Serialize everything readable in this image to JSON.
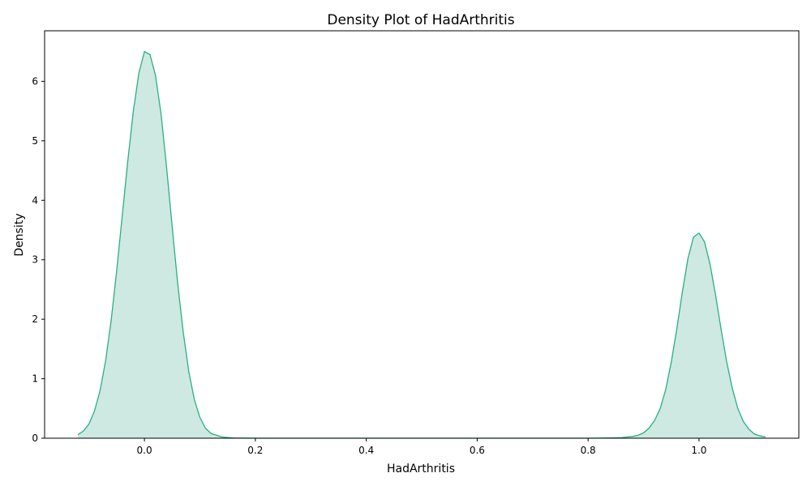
{
  "chart_data": {
    "type": "area",
    "title": "Density Plot of HadArthritis",
    "xlabel": "HadArthritis",
    "ylabel": "Density",
    "xlim": [
      -0.18,
      1.18
    ],
    "ylim": [
      0,
      6.85
    ],
    "xticks": [
      0.0,
      0.2,
      0.4,
      0.6,
      0.8,
      1.0
    ],
    "xtick_labels": [
      "0.0",
      "0.2",
      "0.4",
      "0.6",
      "0.8",
      "1.0"
    ],
    "yticks": [
      0,
      1,
      2,
      3,
      4,
      5,
      6
    ],
    "ytick_labels": [
      "0",
      "1",
      "2",
      "3",
      "4",
      "5",
      "6"
    ],
    "grid": false,
    "color": "#2ab07f",
    "fill_color": "#cde9e1",
    "series": [
      {
        "x": [
          -0.12,
          -0.11,
          -0.1,
          -0.09,
          -0.08,
          -0.07,
          -0.06,
          -0.05,
          -0.04,
          -0.03,
          -0.02,
          -0.01,
          0.0,
          0.01,
          0.02,
          0.03,
          0.04,
          0.05,
          0.06,
          0.07,
          0.08,
          0.09,
          0.1,
          0.11,
          0.12,
          0.14,
          0.16,
          0.2,
          0.3,
          0.4,
          0.5,
          0.6,
          0.7,
          0.8,
          0.84,
          0.86,
          0.88,
          0.89,
          0.9,
          0.91,
          0.92,
          0.93,
          0.94,
          0.95,
          0.96,
          0.97,
          0.98,
          0.99,
          1.0,
          1.01,
          1.02,
          1.03,
          1.04,
          1.05,
          1.06,
          1.07,
          1.08,
          1.09,
          1.1,
          1.11,
          1.12
        ],
        "y": [
          0.06,
          0.12,
          0.24,
          0.46,
          0.8,
          1.3,
          1.98,
          2.82,
          3.74,
          4.66,
          5.5,
          6.14,
          6.5,
          6.45,
          6.1,
          5.45,
          4.55,
          3.56,
          2.6,
          1.78,
          1.12,
          0.65,
          0.35,
          0.17,
          0.08,
          0.02,
          0.004,
          0.0,
          0.0,
          0.0,
          0.0,
          0.0,
          0.0,
          0.0,
          0.005,
          0.01,
          0.03,
          0.05,
          0.09,
          0.17,
          0.3,
          0.5,
          0.82,
          1.28,
          1.84,
          2.46,
          3.02,
          3.38,
          3.45,
          3.3,
          2.92,
          2.4,
          1.82,
          1.28,
          0.84,
          0.5,
          0.28,
          0.15,
          0.07,
          0.04,
          0.02
        ]
      }
    ]
  }
}
